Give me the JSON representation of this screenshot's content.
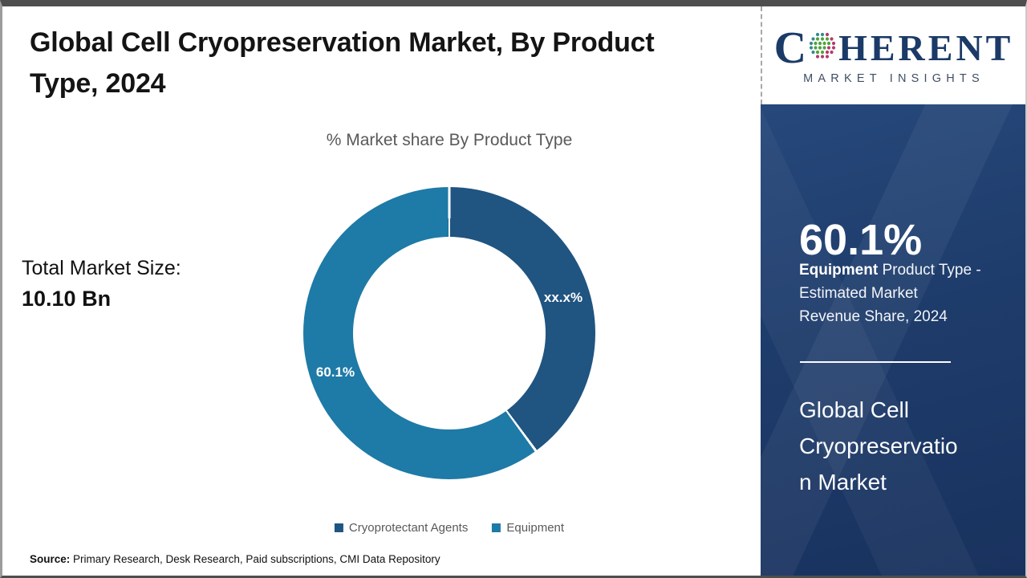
{
  "header": {
    "title": "Global Cell Cryopreservation Market, By Product Type, 2024"
  },
  "chart": {
    "subtitle": "% Market share By Product Type"
  },
  "stats": {
    "total_label": "Total Market Size:",
    "total_value": "10.10 Bn"
  },
  "chart_data": {
    "type": "pie",
    "donut": true,
    "title": "% Market share By Product Type",
    "start_angle_deg": 0,
    "direction": "clockwise",
    "legend_position": "bottom",
    "slices": [
      {
        "name": "Cryoprotectant Agents",
        "value": 39.9,
        "display_label": "xx.x%",
        "color": "#205481"
      },
      {
        "name": "Equipment",
        "value": 60.1,
        "display_label": "60.1%",
        "color": "#1e7aa6"
      }
    ]
  },
  "footer": {
    "source_label": "Source:",
    "source_text": " Primary Research, Desk Research, Paid subscriptions, CMI Data Repository"
  },
  "logo": {
    "c": "C",
    "rest": "HERENT",
    "tagline": "MARKET INSIGHTS"
  },
  "sidebar": {
    "share_value": "60.1%",
    "share_bold": "Equipment",
    "share_desc": " Product Type -\nEstimated Market\nRevenue Share, 2024",
    "market_name": "Global Cell Cryopreservation Market",
    "background_color": "#1e3c6b"
  }
}
